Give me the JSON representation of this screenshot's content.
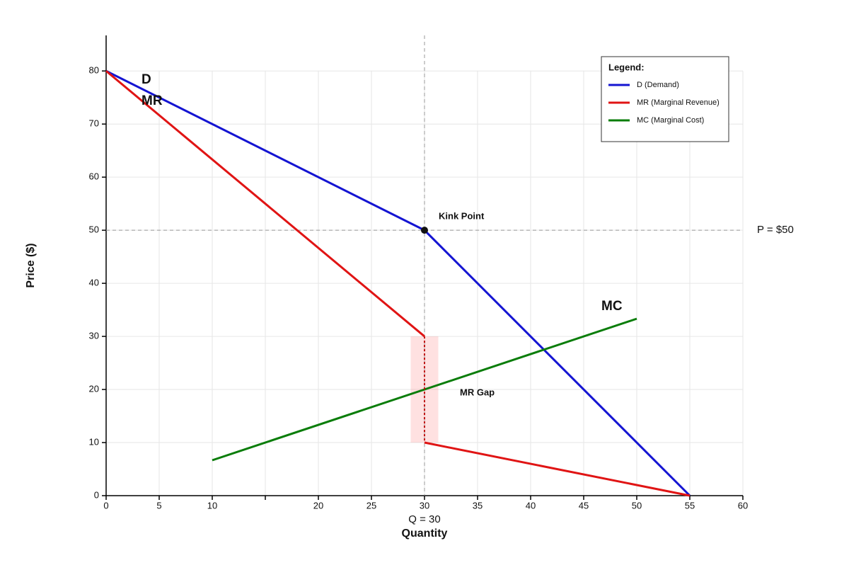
{
  "chart_data": {
    "type": "line",
    "xlabel": "Quantity",
    "ylabel": "Price ($)",
    "xlim": [
      0,
      60
    ],
    "ylim": [
      0,
      86.7
    ],
    "xticks": [
      0,
      5,
      10,
      {
        "value": 15,
        "label": null
      },
      20,
      25,
      30,
      35,
      40,
      45,
      50,
      55,
      60
    ],
    "yticks": [
      0,
      10,
      20,
      30,
      40,
      50,
      60,
      70,
      80
    ],
    "grid": true,
    "series": [
      {
        "name": "D (Demand)",
        "label": "D",
        "color": "#1414d2",
        "x": [
          0,
          30,
          55
        ],
        "values": [
          80,
          50,
          0
        ]
      },
      {
        "name": "MR (Marginal Revenue)",
        "label": "MR",
        "color": "#e01414",
        "x": [
          0,
          30,
          null,
          30,
          55
        ],
        "values": [
          80,
          30,
          null,
          10,
          0
        ]
      },
      {
        "name": "MC (Marginal Cost)",
        "label": "MC",
        "color": "#0a7d0a",
        "x": [
          10,
          50
        ],
        "values": [
          6.67,
          33.33
        ]
      }
    ],
    "reference_lines": [
      {
        "x": 30,
        "label": "Q = 30"
      },
      {
        "y": 50,
        "label": "P = $50"
      }
    ],
    "kink_point": {
      "x": 30,
      "y": 50,
      "label": "Kink Point"
    },
    "mr_gap": {
      "label": "MR Gap",
      "x": 30,
      "xlim": [
        28.7,
        31.3
      ],
      "ylim": [
        10,
        30
      ]
    },
    "legend_title": "Legend:",
    "legend_position": "upper right"
  }
}
